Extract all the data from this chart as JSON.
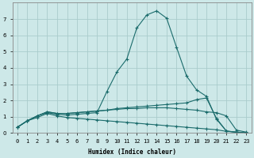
{
  "xlabel": "Humidex (Indice chaleur)",
  "ylabel": "",
  "bg_color": "#cde8e8",
  "grid_color": "#aacccc",
  "line_color": "#1a6b6b",
  "xlim": [
    -0.5,
    23.5
  ],
  "ylim": [
    0,
    8
  ],
  "xtick_labels": [
    "0",
    "1",
    "2",
    "3",
    "4",
    "5",
    "6",
    "7",
    "8",
    "9",
    "10",
    "11",
    "12",
    "13",
    "14",
    "15",
    "16",
    "17",
    "18",
    "19",
    "20",
    "21",
    "22",
    "23"
  ],
  "ytick_labels": [
    "0",
    "1",
    "2",
    "3",
    "4",
    "5",
    "6",
    "7"
  ],
  "series": [
    [
      0.35,
      0.75,
      0.95,
      1.2,
      1.05,
      0.95,
      0.9,
      0.85,
      0.8,
      0.75,
      0.7,
      0.65,
      0.6,
      0.55,
      0.5,
      0.45,
      0.4,
      0.35,
      0.3,
      0.25,
      0.2,
      0.1,
      0.05,
      0.02
    ],
    [
      0.35,
      0.75,
      1.05,
      1.3,
      1.2,
      1.2,
      1.25,
      1.3,
      1.35,
      1.4,
      1.45,
      1.5,
      1.5,
      1.55,
      1.55,
      1.55,
      1.5,
      1.45,
      1.4,
      1.3,
      1.25,
      1.05,
      0.18,
      0.05
    ],
    [
      0.35,
      0.75,
      1.05,
      1.3,
      1.2,
      1.2,
      1.25,
      1.3,
      1.35,
      1.4,
      1.5,
      1.55,
      1.6,
      1.65,
      1.7,
      1.75,
      1.8,
      1.85,
      2.05,
      2.15,
      0.9,
      0.12,
      0.05,
      0.02
    ],
    [
      0.35,
      0.75,
      1.05,
      1.25,
      1.15,
      1.1,
      1.15,
      1.2,
      1.25,
      2.55,
      3.75,
      4.55,
      6.45,
      7.25,
      7.5,
      7.05,
      5.25,
      3.5,
      2.65,
      2.25,
      0.85,
      0.12,
      0.05,
      0.02
    ]
  ]
}
